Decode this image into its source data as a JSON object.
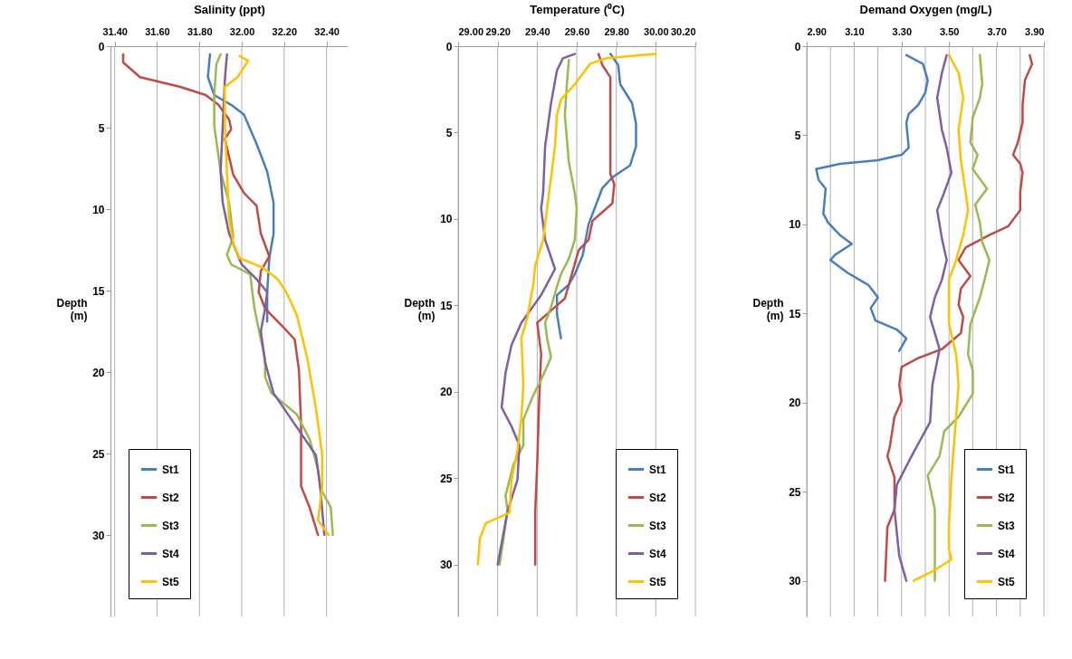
{
  "chart_data": [
    {
      "type": "line",
      "orientation": "horizontal",
      "xlabel": "Salinity (ppt)",
      "ylabel": "Depth (m)",
      "xlim": [
        31.38,
        32.5
      ],
      "xticks": [
        {
          "value": 31.4,
          "label": "31.40"
        },
        {
          "value": 31.6,
          "label": "31.60"
        },
        {
          "value": 31.8,
          "label": "31.80"
        },
        {
          "value": 32.0,
          "label": "32.00"
        },
        {
          "value": 32.2,
          "label": "32.20"
        },
        {
          "value": 32.4,
          "label": "32.40"
        }
      ],
      "ylim": [
        35,
        0
      ],
      "yticks": [
        0,
        5,
        10,
        15,
        20,
        25,
        30
      ],
      "grid": "x",
      "legend": "bottom left",
      "series": [
        {
          "name": "St1",
          "color": "#4a7ebb",
          "x": [
            0.5,
            1.9,
            3,
            3.6,
            4.2,
            5.1,
            6,
            7.7,
            9.6,
            11.5,
            13,
            15.1,
            16.9
          ],
          "values": [
            31.85,
            31.84,
            31.87,
            31.95,
            32.01,
            32.04,
            32.07,
            32.12,
            32.15,
            32.15,
            32.13,
            32.12,
            32.12
          ]
        },
        {
          "name": "St2",
          "color": "#be4b48",
          "x": [
            0.5,
            1,
            1.9,
            2.5,
            3,
            3.6,
            4.5,
            5.1,
            5.7,
            6.8,
            7.9,
            9,
            9.8,
            11.5,
            12.9,
            13.8,
            15.1,
            16.1,
            17.3,
            18,
            19.9,
            23.2,
            27,
            28.3,
            30
          ],
          "values": [
            31.44,
            31.44,
            31.52,
            31.71,
            31.83,
            31.89,
            31.94,
            31.95,
            31.92,
            31.94,
            31.96,
            32.01,
            32.07,
            32.09,
            32.13,
            32.09,
            32.08,
            32.11,
            32.2,
            32.25,
            32.27,
            32.28,
            32.28,
            32.32,
            32.36
          ]
        },
        {
          "name": "St3",
          "color": "#98b954",
          "x": [
            0.5,
            1.1,
            3,
            4.9,
            5.8,
            7.7,
            9.6,
            11.7,
            12.8,
            13.4,
            14,
            15.1,
            16.1,
            18,
            19.2,
            20.3,
            21.3,
            22.6,
            24.1,
            26,
            27.1,
            28.3,
            30
          ],
          "values": [
            31.9,
            31.88,
            31.87,
            31.87,
            31.88,
            31.9,
            31.94,
            31.96,
            31.93,
            31.95,
            32.04,
            32.05,
            32.06,
            32.09,
            32.11,
            32.11,
            32.14,
            32.26,
            32.32,
            32.36,
            32.37,
            32.42,
            32.43
          ]
        },
        {
          "name": "St4",
          "color": "#7d60a0",
          "x": [
            0.5,
            2.1,
            4.9,
            7.7,
            9.6,
            11.5,
            13.4,
            14.3,
            15.1,
            16.1,
            17.5,
            19.4,
            21.3,
            23.2,
            25.1,
            27,
            30
          ],
          "values": [
            31.93,
            31.92,
            31.91,
            31.9,
            31.91,
            31.94,
            32.0,
            32.07,
            32.12,
            32.11,
            32.09,
            32.11,
            32.15,
            32.25,
            32.35,
            32.37,
            32.39
          ]
        },
        {
          "name": "St5",
          "color": "#ffc000",
          "x": [
            0.6,
            0.9,
            1.9,
            2.5,
            4.9,
            7.7,
            10.6,
            12.1,
            13,
            13.6,
            14.3,
            15.1,
            16.5,
            19.2,
            22.2,
            25.1,
            27,
            29.1,
            30
          ],
          "values": [
            31.99,
            32.03,
            31.98,
            31.92,
            31.92,
            31.93,
            31.94,
            31.96,
            31.99,
            32.1,
            32.17,
            32.21,
            32.26,
            32.31,
            32.35,
            32.38,
            32.38,
            32.36,
            32.41
          ]
        }
      ]
    },
    {
      "type": "line",
      "orientation": "horizontal",
      "xlabel": "Temperature (⁰C)",
      "ylabel": "Depth (m)",
      "xlim": [
        29.0,
        30.2
      ],
      "xticks": [
        {
          "value": 29.0,
          "label": "29.00"
        },
        {
          "value": 29.2,
          "label": "29.20"
        },
        {
          "value": 29.4,
          "label": "29.40"
        },
        {
          "value": 29.6,
          "label": "29.60"
        },
        {
          "value": 29.8,
          "label": "29.80"
        },
        {
          "value": 30.0,
          "label": "30.00"
        },
        {
          "value": 30.2,
          "label": "30.20"
        }
      ],
      "ylim": [
        33,
        0
      ],
      "yticks": [
        0,
        5,
        10,
        15,
        20,
        25,
        30
      ],
      "grid": "x",
      "legend": "bottom right",
      "series": [
        {
          "name": "St1",
          "color": "#4a7ebb",
          "x": [
            0.45,
            1.1,
            2.2,
            3.3,
            4.5,
            5.8,
            6.9,
            7.6,
            8.2,
            9.1,
            10.3,
            12.1,
            13.2,
            13.8,
            14.4,
            15.5,
            16.9
          ],
          "values": [
            29.77,
            29.81,
            29.82,
            29.88,
            29.9,
            29.9,
            29.87,
            29.78,
            29.73,
            29.7,
            29.66,
            29.63,
            29.59,
            29.56,
            29.5,
            29.5,
            29.52
          ]
        },
        {
          "name": "St2",
          "color": "#be4b48",
          "x": [
            0.45,
            1.1,
            1.8,
            3.1,
            4.9,
            6.5,
            7.4,
            8,
            9.1,
            9.6,
            10.1,
            11.2,
            11.8,
            13,
            14.6,
            15.3,
            16,
            17.8,
            20.5,
            24.2,
            26.9,
            30
          ],
          "values": [
            29.71,
            29.73,
            29.77,
            29.77,
            29.77,
            29.77,
            29.77,
            29.79,
            29.78,
            29.73,
            29.68,
            29.66,
            29.61,
            29.58,
            29.54,
            29.47,
            29.4,
            29.42,
            29.41,
            29.4,
            29.39,
            29.39
          ]
        },
        {
          "name": "St3",
          "color": "#98b954",
          "x": [
            0.8,
            2.2,
            4,
            6.7,
            8.5,
            9.4,
            11.2,
            12.3,
            13.2,
            13.9,
            15.1,
            16,
            16.9,
            18,
            19.3,
            20.2,
            21.6,
            23.1,
            24.2,
            26,
            26.9,
            30
          ],
          "values": [
            29.56,
            29.55,
            29.54,
            29.56,
            29.59,
            29.6,
            29.59,
            29.56,
            29.52,
            29.5,
            29.47,
            29.44,
            29.45,
            29.47,
            29.42,
            29.38,
            29.33,
            29.33,
            29.28,
            29.24,
            29.25,
            29.21
          ]
        },
        {
          "name": "St4",
          "color": "#7d60a0",
          "x": [
            0.45,
            0.7,
            1.4,
            3.3,
            5.8,
            8.5,
            9.4,
            11.2,
            12.9,
            14.4,
            16,
            17.3,
            18.9,
            20.9,
            22,
            23.1,
            25.1,
            26.9,
            30
          ],
          "values": [
            29.59,
            29.53,
            29.5,
            29.47,
            29.44,
            29.43,
            29.42,
            29.44,
            29.49,
            29.42,
            29.32,
            29.27,
            29.24,
            29.22,
            29.27,
            29.31,
            29.3,
            29.25,
            29.2
          ]
        },
        {
          "name": "St5",
          "color": "#ffc000",
          "x": [
            0.45,
            0.7,
            1,
            1.6,
            2.2,
            3.1,
            4,
            5.8,
            7.6,
            9.4,
            11.2,
            12.7,
            13.8,
            15.7,
            16.9,
            19.6,
            21.5,
            23.4,
            25.1,
            27,
            27.6,
            28.5,
            30
          ],
          "values": [
            30.0,
            29.75,
            29.67,
            29.63,
            29.59,
            29.52,
            29.5,
            29.49,
            29.47,
            29.45,
            29.43,
            29.39,
            29.38,
            29.35,
            29.32,
            29.33,
            29.32,
            29.3,
            29.27,
            29.26,
            29.14,
            29.11,
            29.1
          ]
        }
      ]
    },
    {
      "type": "line",
      "orientation": "horizontal",
      "xlabel": "Demand Oxygen (mg/L)",
      "ylabel": "Depth (m)",
      "xlim": [
        2.9,
        3.9
      ],
      "xticks": [
        {
          "value": 2.9,
          "label": "2.90"
        },
        {
          "value": 3.0,
          "label": null
        },
        {
          "value": 3.1,
          "label": "3.10"
        },
        {
          "value": 3.2,
          "label": null
        },
        {
          "value": 3.3,
          "label": "3.30"
        },
        {
          "value": 3.4,
          "label": null
        },
        {
          "value": 3.5,
          "label": "3.50"
        },
        {
          "value": 3.6,
          "label": null
        },
        {
          "value": 3.7,
          "label": "3.70"
        },
        {
          "value": 3.8,
          "label": null
        },
        {
          "value": 3.9,
          "label": "3.90"
        }
      ],
      "ylim": [
        32,
        0
      ],
      "yticks": [
        0,
        5,
        10,
        15,
        20,
        25,
        30
      ],
      "grid": "x",
      "legend": "bottom right",
      "series": [
        {
          "name": "St1",
          "color": "#4a7ebb",
          "x": [
            0.5,
            1,
            1.9,
            2.6,
            3.3,
            3.8,
            4.3,
            5.7,
            6.1,
            6.4,
            6.6,
            6.9,
            7.5,
            8,
            9.4,
            9.9,
            10.6,
            11.1,
            11.7,
            12,
            12.7,
            13.4,
            14.1,
            14.7,
            15.4,
            15.9,
            16.4,
            17.1
          ],
          "values": [
            3.32,
            3.39,
            3.41,
            3.4,
            3.37,
            3.33,
            3.32,
            3.33,
            3.3,
            3.2,
            3.04,
            2.94,
            2.95,
            2.98,
            2.97,
            2.99,
            3.04,
            3.09,
            3.02,
            3.0,
            3.07,
            3.16,
            3.2,
            3.17,
            3.19,
            3.28,
            3.32,
            3.29
          ]
        },
        {
          "name": "St2",
          "color": "#be4b48",
          "x": [
            0.5,
            1,
            1.9,
            3.3,
            4.3,
            5.4,
            6.1,
            6.6,
            7.1,
            8.2,
            9.2,
            10.1,
            10.6,
            11.3,
            12,
            12.9,
            13.6,
            14.5,
            15.2,
            16.1,
            17,
            17.5,
            18,
            19,
            19.9,
            20.8,
            22.5,
            23,
            24.2,
            26,
            27,
            30
          ],
          "values": [
            3.84,
            3.85,
            3.82,
            3.81,
            3.81,
            3.79,
            3.77,
            3.8,
            3.81,
            3.8,
            3.8,
            3.75,
            3.67,
            3.57,
            3.54,
            3.59,
            3.55,
            3.54,
            3.56,
            3.55,
            3.47,
            3.37,
            3.3,
            3.29,
            3.3,
            3.27,
            3.25,
            3.24,
            3.27,
            3.27,
            3.24,
            3.23
          ]
        },
        {
          "name": "St3",
          "color": "#98b954",
          "x": [
            0.5,
            2.1,
            2.9,
            4,
            5.4,
            6.1,
            6.9,
            8,
            8.9,
            9.9,
            11,
            12,
            13.1,
            14.1,
            15.6,
            17.3,
            18.2,
            19.5,
            20.8,
            21.6,
            23,
            24.1,
            26,
            30
          ],
          "values": [
            3.63,
            3.64,
            3.63,
            3.6,
            3.59,
            3.62,
            3.6,
            3.66,
            3.61,
            3.63,
            3.64,
            3.67,
            3.65,
            3.63,
            3.59,
            3.58,
            3.6,
            3.6,
            3.54,
            3.48,
            3.46,
            3.41,
            3.44,
            3.44
          ]
        },
        {
          "name": "St4",
          "color": "#7d60a0",
          "x": [
            0.5,
            1.5,
            2.9,
            4.7,
            5.7,
            7.1,
            8.2,
            9.2,
            10.8,
            12,
            13.1,
            14.1,
            15.2,
            17,
            19,
            21.1,
            22.8,
            24.6,
            26,
            28.6,
            30
          ],
          "values": [
            3.49,
            3.47,
            3.45,
            3.47,
            3.49,
            3.51,
            3.48,
            3.45,
            3.47,
            3.49,
            3.47,
            3.44,
            3.42,
            3.46,
            3.43,
            3.42,
            3.35,
            3.28,
            3.27,
            3.29,
            3.32
          ]
        },
        {
          "name": "St5",
          "color": "#ffc000",
          "x": [
            0.5,
            1.5,
            2.9,
            4.7,
            6.4,
            8.2,
            9.2,
            10.6,
            12,
            13.1,
            14.1,
            15.6,
            17.3,
            19,
            20.8,
            24.2,
            26.8,
            28.2,
            28.8,
            29.4,
            30
          ],
          "values": [
            3.5,
            3.54,
            3.56,
            3.54,
            3.55,
            3.57,
            3.58,
            3.56,
            3.53,
            3.5,
            3.5,
            3.5,
            3.53,
            3.54,
            3.53,
            3.51,
            3.5,
            3.5,
            3.51,
            3.44,
            3.35
          ]
        }
      ]
    }
  ]
}
